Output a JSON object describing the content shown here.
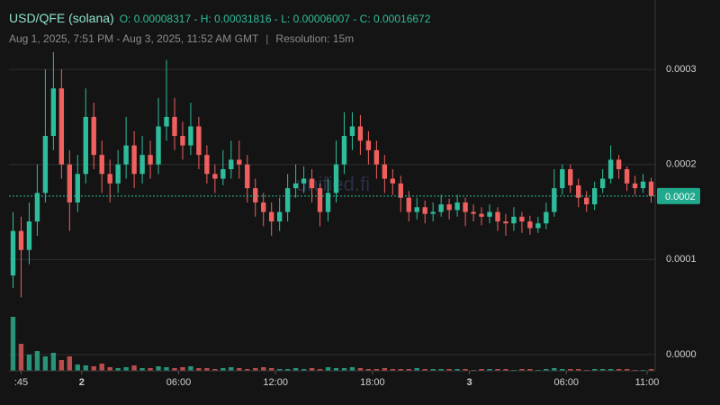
{
  "chart_data": {
    "type": "candlestick",
    "title": "USD/QFE (solana)",
    "ohlc": [
      {
        "label": "O:",
        "value": 8.317e-05
      },
      {
        "label": "H:",
        "value": 0.00031816
      },
      {
        "label": "L:",
        "value": 6.007e-05
      },
      {
        "label": "C:",
        "value": 0.00016672
      }
    ],
    "subtitle": "Aug 1, 2025, 7:51 PM - Aug 3, 2025, 11:52 AM GMT",
    "resolution": "Resolution: 15m",
    "watermark": "unified.fi",
    "up_color": "#2ebd9b",
    "down_color": "#f0605f",
    "grid": true,
    "xlim": [
      -4.5,
      35.5
    ],
    "xticks": [
      {
        "value": -3.75,
        "label": ":45"
      },
      {
        "value": 0,
        "label": "2"
      },
      {
        "value": 6,
        "label": "06:00"
      },
      {
        "value": 12,
        "label": "12:00"
      },
      {
        "value": 18,
        "label": "18:00"
      },
      {
        "value": 24,
        "label": "3"
      },
      {
        "value": 30,
        "label": "06:00"
      },
      {
        "value": 35,
        "label": "11:00"
      }
    ],
    "ylim": [
      -1.71e-05,
      0.000373
    ],
    "yticks": [
      {
        "value": 0,
        "label": "0.0000"
      },
      0.0001,
      0.0002,
      0.0003
    ],
    "last_price": {
      "value": 0.00016672,
      "label": "0.0002"
    },
    "x": [
      -4.25,
      -3.75,
      -3.25,
      -2.75,
      -2.25,
      -1.75,
      -1.25,
      -0.75,
      -0.25,
      0.25,
      0.75,
      1.25,
      1.75,
      2.25,
      2.75,
      3.25,
      3.75,
      4.25,
      4.75,
      5.25,
      5.75,
      6.25,
      6.75,
      7.25,
      7.75,
      8.25,
      8.75,
      9.25,
      9.75,
      10.25,
      10.75,
      11.25,
      11.75,
      12.25,
      12.75,
      13.25,
      13.75,
      14.25,
      14.75,
      15.25,
      15.75,
      16.25,
      16.75,
      17.25,
      17.75,
      18.25,
      18.75,
      19.25,
      19.75,
      20.25,
      20.75,
      21.25,
      21.75,
      22.25,
      22.75,
      23.25,
      23.75,
      24.25,
      24.75,
      25.25,
      25.75,
      26.25,
      26.75,
      27.25,
      27.75,
      28.25,
      28.75,
      29.25,
      29.75,
      30.25,
      30.75,
      31.25,
      31.75,
      32.25,
      32.75,
      33.25,
      33.75,
      34.25,
      34.75,
      35.25
    ],
    "open": [
      8.317e-05,
      0.00013,
      0.00011,
      0.00014,
      0.00017,
      0.00023,
      0.00028,
      0.0002,
      0.00016,
      0.00019,
      0.00025,
      0.00021,
      0.00019,
      0.00018,
      0.0002,
      0.00022,
      0.00019,
      0.00021,
      0.0002,
      0.00024,
      0.00025,
      0.00023,
      0.00022,
      0.00024,
      0.00021,
      0.00019,
      0.000185,
      0.000195,
      0.000205,
      0.0002,
      0.000175,
      0.00016,
      0.00015,
      0.00014,
      0.00015,
      0.000175,
      0.00018,
      0.000185,
      0.000175,
      0.00015,
      0.00017,
      0.0002,
      0.00023,
      0.00024,
      0.000225,
      0.000215,
      0.0002,
      0.000185,
      0.00018,
      0.000165,
      0.00015,
      0.000155,
      0.000148,
      0.00015,
      0.000158,
      0.000152,
      0.00016,
      0.00015,
      0.000148,
      0.000145,
      0.00015,
      0.00014,
      0.000138,
      0.000145,
      0.00014,
      0.000133,
      0.000138,
      0.00015,
      0.000175,
      0.000195,
      0.000178,
      0.000165,
      0.000158,
      0.000175,
      0.000185,
      0.000205,
      0.000195,
      0.00018,
      0.000175,
      0.000182
    ],
    "high": [
      0.00015,
      0.000145,
      0.00016,
      0.0002,
      0.0003,
      0.00031816,
      0.0003,
      0.000215,
      0.00021,
      0.00028,
      0.000265,
      0.000225,
      0.000205,
      0.000215,
      0.00025,
      0.000235,
      0.00023,
      0.000225,
      0.00027,
      0.00031,
      0.00027,
      0.000245,
      0.000265,
      0.00025,
      0.00022,
      0.0002,
      0.000215,
      0.000225,
      0.000225,
      0.00021,
      0.000185,
      0.00017,
      0.00016,
      0.000165,
      0.00019,
      0.0002,
      0.000198,
      0.000195,
      0.00018,
      0.000185,
      0.000225,
      0.000255,
      0.000255,
      0.000252,
      0.000235,
      0.000225,
      0.00021,
      0.000195,
      0.000188,
      0.000172,
      0.000165,
      0.000162,
      0.00016,
      0.000168,
      0.000164,
      0.000168,
      0.000165,
      0.000158,
      0.000155,
      0.000158,
      0.000155,
      0.000148,
      0.000155,
      0.00015,
      0.000146,
      0.000145,
      0.00016,
      0.000195,
      0.0002,
      0.0002,
      0.000185,
      0.000172,
      0.000182,
      0.000195,
      0.00022,
      0.00021,
      0.000198,
      0.000188,
      0.00019,
      0.000186
    ],
    "low": [
      7e-05,
      6.007e-05,
      9.5e-05,
      0.000125,
      0.00016,
      0.000215,
      0.000185,
      0.00013,
      0.00015,
      0.00018,
      0.000195,
      0.00017,
      0.00016,
      0.00017,
      0.000185,
      0.000175,
      0.00018,
      0.000185,
      0.00019,
      0.000225,
      0.000215,
      0.000205,
      0.00021,
      0.000195,
      0.00018,
      0.00017,
      0.000178,
      0.000185,
      0.000185,
      0.00016,
      0.000145,
      0.000135,
      0.000125,
      0.00013,
      0.00014,
      0.000165,
      0.00017,
      0.00016,
      0.000135,
      0.00014,
      0.00016,
      0.00019,
      0.000215,
      0.00021,
      0.0002,
      0.000185,
      0.00017,
      0.000168,
      0.00015,
      0.00014,
      0.000142,
      0.000138,
      0.00014,
      0.000145,
      0.000142,
      0.000145,
      0.000135,
      0.00014,
      0.000136,
      0.000138,
      0.00013,
      0.000125,
      0.00013,
      0.000128,
      0.000126,
      0.000128,
      0.000132,
      0.000145,
      0.000168,
      0.00017,
      0.000155,
      0.00015,
      0.000152,
      0.00017,
      0.00018,
      0.000185,
      0.000172,
      0.000168,
      0.00017,
      0.00016
    ],
    "close": [
      0.00013,
      0.00011,
      0.00014,
      0.00017,
      0.00023,
      0.00028,
      0.0002,
      0.00016,
      0.00019,
      0.00025,
      0.00021,
      0.00019,
      0.00018,
      0.0002,
      0.00022,
      0.00019,
      0.00021,
      0.0002,
      0.00024,
      0.00025,
      0.00023,
      0.00022,
      0.00024,
      0.00021,
      0.00019,
      0.000185,
      0.000195,
      0.000205,
      0.0002,
      0.000175,
      0.00016,
      0.00015,
      0.00014,
      0.00015,
      0.000175,
      0.00018,
      0.000185,
      0.000175,
      0.00015,
      0.00017,
      0.0002,
      0.00023,
      0.00024,
      0.000225,
      0.000215,
      0.0002,
      0.000185,
      0.00018,
      0.000165,
      0.00015,
      0.000155,
      0.000148,
      0.00015,
      0.000158,
      0.000152,
      0.00016,
      0.00015,
      0.000148,
      0.000145,
      0.00015,
      0.00014,
      0.000138,
      0.000145,
      0.00014,
      0.000133,
      0.000138,
      0.00015,
      0.000175,
      0.000195,
      0.000178,
      0.000165,
      0.000158,
      0.000175,
      0.000185,
      0.000205,
      0.000195,
      0.00018,
      0.000175,
      0.000182,
      0.00016672
    ],
    "volume": [
      60,
      30,
      18,
      22,
      16,
      20,
      12,
      16,
      7,
      6,
      5,
      8,
      4,
      3,
      4,
      6,
      3,
      3,
      5,
      4,
      3,
      4,
      5,
      3,
      3,
      2,
      3,
      4,
      3,
      2,
      3,
      4,
      3,
      2,
      2,
      3,
      2,
      3,
      2,
      4,
      3,
      3,
      4,
      3,
      2,
      2,
      3,
      2,
      2,
      2,
      3,
      2,
      2,
      2,
      2,
      2,
      2,
      1,
      2,
      2,
      2,
      2,
      1,
      2,
      2,
      1,
      2,
      3,
      2,
      2,
      2,
      1,
      2,
      2,
      2,
      2,
      2,
      1,
      1,
      2
    ]
  }
}
